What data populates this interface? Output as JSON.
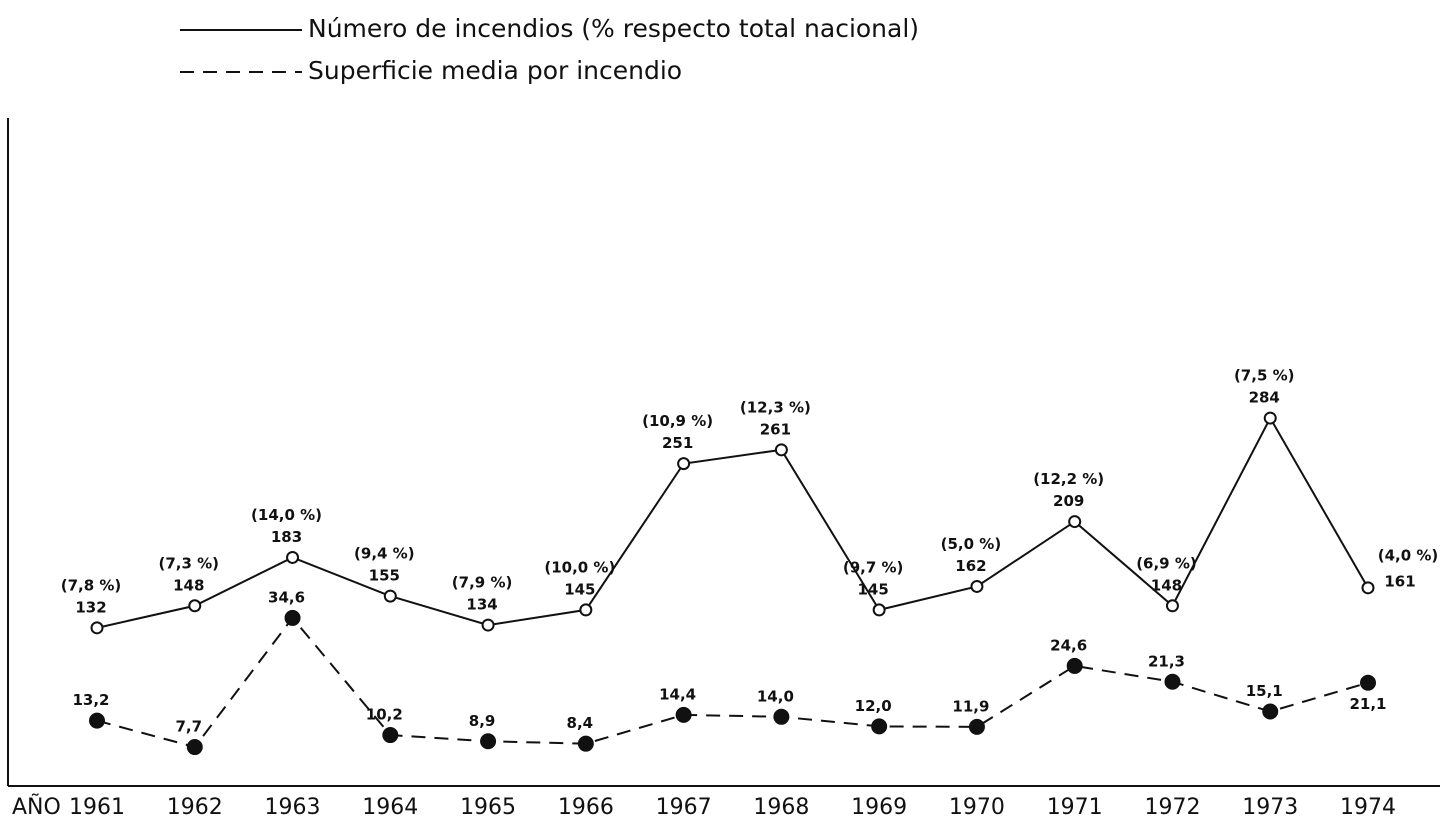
{
  "chart_data": {
    "type": "line",
    "x_label": "AÑO",
    "categories": [
      "1961",
      "1962",
      "1963",
      "1964",
      "1965",
      "1966",
      "1967",
      "1968",
      "1969",
      "1970",
      "1971",
      "1972",
      "1973",
      "1974"
    ],
    "series": [
      {
        "name": "Número de incendios (% respecto total nacional)",
        "color": "#111111",
        "line_style": "solid",
        "marker": "open",
        "values": [
          132,
          148,
          183,
          155,
          134,
          145,
          251,
          261,
          145,
          162,
          209,
          148,
          284,
          161
        ],
        "annotations": [
          "(7,8 %)",
          "(7,3 %)",
          "(14,0 %)",
          "(9,4 %)",
          "(7,9 %)",
          "(10,0 %)",
          "(10,9 %)",
          "(12,3 %)",
          "(9,7 %)",
          "(5,0 %)",
          "(12,2 %)",
          "(6,9 %)",
          "(7,5 %)",
          "(4,0 %)"
        ]
      },
      {
        "name": "Superficie media por incendio",
        "color": "#111111",
        "line_style": "dashed",
        "marker": "filled",
        "values": [
          13.2,
          7.7,
          34.6,
          10.2,
          8.9,
          8.4,
          14.4,
          14.0,
          12.0,
          11.9,
          24.6,
          21.3,
          15.1,
          21.1
        ],
        "value_labels": [
          "13,2",
          "7,7",
          "34,6",
          "10,2",
          "8,9",
          "8,4",
          "14,4",
          "14,0",
          "12,0",
          "11,9",
          "24,6",
          "21,3",
          "15,1",
          "21,1"
        ]
      }
    ]
  }
}
